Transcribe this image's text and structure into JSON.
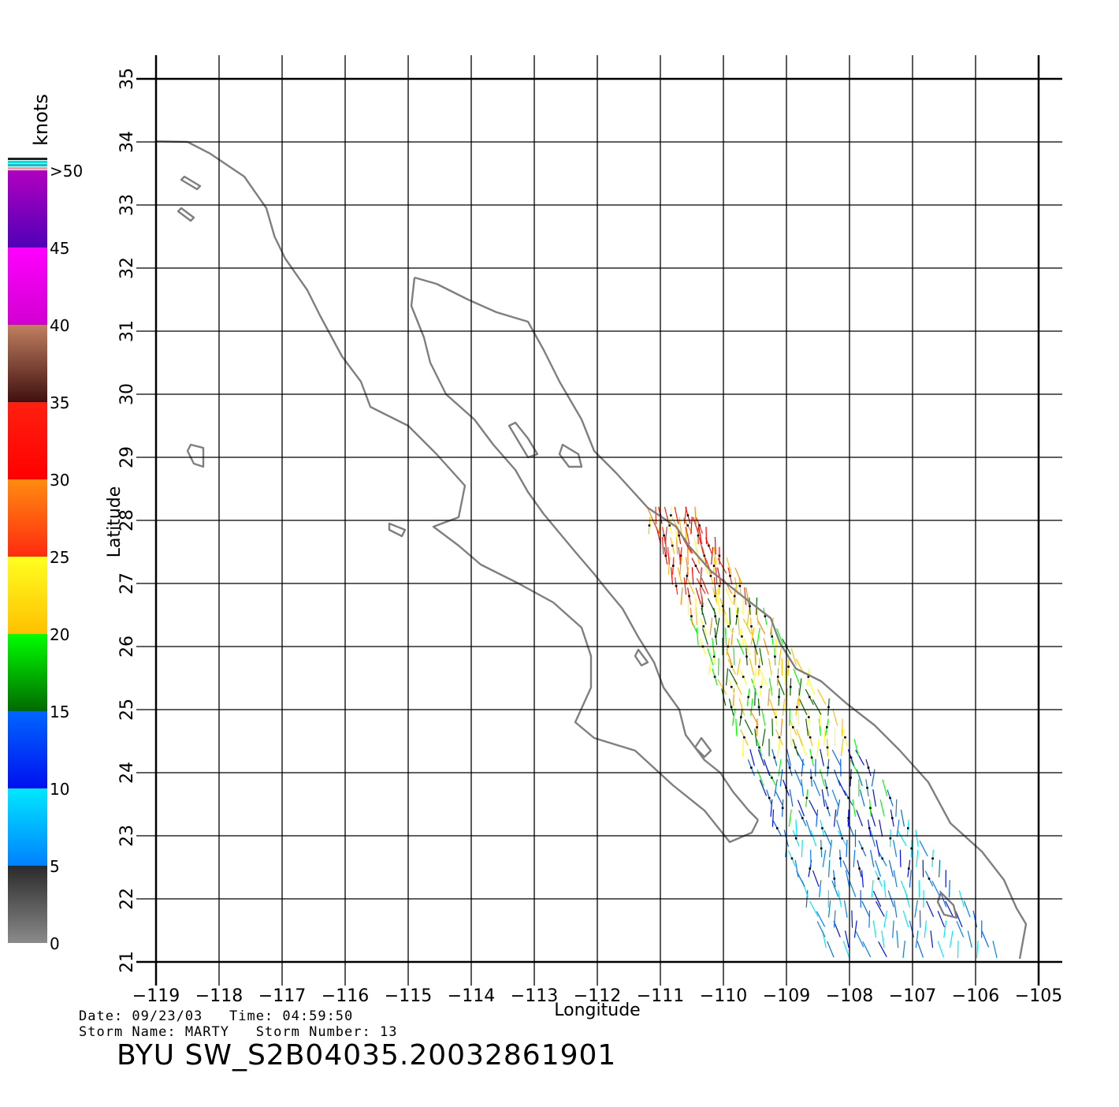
{
  "map": {
    "lon_range": [
      -119,
      -105
    ],
    "lat_range": [
      21,
      35
    ],
    "lon_ticks": [
      "-119",
      "-118",
      "-117",
      "-116",
      "-115",
      "-114",
      "-113",
      "-112",
      "-111",
      "-110",
      "-109",
      "-108",
      "-107",
      "-106",
      "-105"
    ],
    "lat_ticks": [
      "21",
      "22",
      "23",
      "24",
      "25",
      "26",
      "27",
      "28",
      "29",
      "30",
      "31",
      "32",
      "33",
      "34",
      "35"
    ],
    "xlabel": "Longitude",
    "ylabel": "Latitude",
    "grid": true,
    "coastline_color": "#7f7f7f",
    "grid_color": "#000000"
  },
  "colorbar": {
    "unit": "knots",
    "labels": [
      "0",
      "5",
      "10",
      "15",
      "20",
      "25",
      "30",
      "35",
      "40",
      "45",
      ">50"
    ],
    "bands": [
      {
        "from": 0,
        "to": 5,
        "top": "#2a2a2a",
        "bottom": "#8a8a8a"
      },
      {
        "from": 5,
        "to": 10,
        "top": "#00e8ff",
        "bottom": "#0080ff"
      },
      {
        "from": 10,
        "to": 15,
        "top": "#0066ff",
        "bottom": "#0010f0"
      },
      {
        "from": 15,
        "to": 20,
        "top": "#00ff00",
        "bottom": "#006a00"
      },
      {
        "from": 20,
        "to": 25,
        "top": "#ffff20",
        "bottom": "#ffc000"
      },
      {
        "from": 25,
        "to": 30,
        "top": "#ff8c10",
        "bottom": "#ff2a10"
      },
      {
        "from": 30,
        "to": 35,
        "top": "#ff2010",
        "bottom": "#ff0000"
      },
      {
        "from": 35,
        "to": 40,
        "top": "#c08060",
        "bottom": "#401010"
      },
      {
        "from": 40,
        "to": 45,
        "top": "#ff00ff",
        "bottom": "#d000d0"
      },
      {
        "from": 45,
        "to": 50,
        "top": "#b000c0",
        "bottom": "#5000b8"
      }
    ],
    "top_stripes": [
      "#e8a0a0",
      "#30b0c0",
      "#00e0e0",
      "#202020"
    ]
  },
  "info": {
    "line1": "Date: 09/23/03   Time: 04:59:50",
    "line2": "Storm Name: MARTY   Storm Number: 13",
    "title": "BYU SW_S2B04035.20032861901"
  }
}
